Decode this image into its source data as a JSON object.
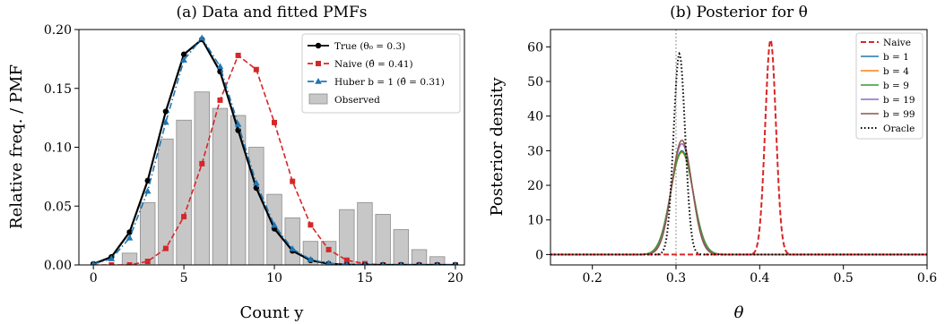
{
  "chart_data": [
    {
      "type": "bar",
      "title": "(a) Data and fitted PMFs",
      "xlabel": "Count y",
      "ylabel": "Relative freq. / PMF",
      "xlim": [
        -0.8,
        20.5
      ],
      "ylim": [
        0,
        0.2
      ],
      "xticks": [
        0,
        5,
        10,
        15,
        20
      ],
      "yticks": [
        0.0,
        0.05,
        0.1,
        0.15,
        0.2
      ],
      "xtick_labels": [
        "0",
        "5",
        "10",
        "15",
        "20"
      ],
      "ytick_labels": [
        "0.00",
        "0.05",
        "0.10",
        "0.15",
        "0.20"
      ],
      "legend_position": "top-right",
      "observed": {
        "name": "Observed",
        "color": "#c7c7c7",
        "edge_color": "#8c8c8c",
        "x": [
          0,
          1,
          2,
          3,
          4,
          5,
          6,
          7,
          8,
          9,
          10,
          11,
          12,
          13,
          14,
          15,
          16,
          17,
          18,
          19,
          20
        ],
        "values": [
          0.0,
          0.0,
          0.01,
          0.053,
          0.107,
          0.123,
          0.147,
          0.133,
          0.127,
          0.1,
          0.06,
          0.04,
          0.02,
          0.02,
          0.047,
          0.053,
          0.043,
          0.03,
          0.013,
          0.007,
          0.0
        ]
      },
      "series": [
        {
          "name": "True (θ₀ = 0.3)",
          "color": "#000000",
          "style": "solid",
          "marker": "circle",
          "x": [
            0,
            1,
            2,
            3,
            4,
            5,
            6,
            7,
            8,
            9,
            10,
            11,
            12,
            13,
            14,
            15,
            16,
            17,
            18,
            19,
            20
          ],
          "values": [
            0.0008,
            0.0068,
            0.0278,
            0.0716,
            0.1304,
            0.1789,
            0.1916,
            0.1643,
            0.1144,
            0.0654,
            0.0308,
            0.012,
            0.0039,
            0.001,
            0.0002,
            0.0,
            0.0,
            0.0,
            0.0,
            0.0,
            0.0
          ]
        },
        {
          "name": "Naive (θ̂ = 0.41)",
          "color": "#d62728",
          "style": "dashed",
          "marker": "square",
          "x": [
            0,
            1,
            2,
            3,
            4,
            5,
            6,
            7,
            8,
            9,
            10,
            11,
            12,
            13,
            14,
            15,
            16,
            17,
            18,
            19,
            20
          ],
          "values": [
            0.0,
            0.0,
            0.0,
            0.003,
            0.014,
            0.041,
            0.086,
            0.14,
            0.178,
            0.166,
            0.121,
            0.071,
            0.034,
            0.013,
            0.004,
            0.001,
            0.0,
            0.0,
            0.0,
            0.0,
            0.0
          ]
        },
        {
          "name": "Huber b = 1 (θ̂ = 0.31)",
          "color": "#1f77b4",
          "style": "dashdot",
          "marker": "triangle",
          "x": [
            0,
            1,
            2,
            3,
            4,
            5,
            6,
            7,
            8,
            9,
            10,
            11,
            12,
            13,
            14,
            15,
            16,
            17,
            18,
            19,
            20
          ],
          "values": [
            0.0006,
            0.0053,
            0.0229,
            0.0627,
            0.1212,
            0.1741,
            0.1928,
            0.1686,
            0.1194,
            0.0696,
            0.0337,
            0.0136,
            0.0046,
            0.0013,
            0.0003,
            0.0,
            0.0,
            0.0,
            0.0,
            0.0,
            0.0
          ]
        }
      ]
    },
    {
      "type": "line",
      "title": "(b) Posterior for θ",
      "xlabel": "θ",
      "ylabel": "Posterior density",
      "xlim": [
        0.15,
        0.6
      ],
      "ylim": [
        -3,
        65
      ],
      "xticks": [
        0.2,
        0.3,
        0.4,
        0.5,
        0.6
      ],
      "yticks": [
        0,
        10,
        20,
        30,
        40,
        50,
        60
      ],
      "xtick_labels": [
        "0.2",
        "0.3",
        "0.4",
        "0.5",
        "0.6"
      ],
      "ytick_labels": [
        "0",
        "10",
        "20",
        "30",
        "40",
        "50",
        "60"
      ],
      "legend_position": "top-right",
      "vertical_reference": {
        "x": 0.3,
        "color": "#8c8c8c",
        "style": "dotted"
      },
      "series": [
        {
          "name": "Naive",
          "color": "#d62728",
          "style": "dashed",
          "mean": 0.413,
          "sd": 0.0064,
          "peak": 62
        },
        {
          "name": "b = 1",
          "color": "#1f77b4",
          "style": "solid",
          "mean": 0.307,
          "sd": 0.0133,
          "peak": 30.0
        },
        {
          "name": "b = 4",
          "color": "#ff7f0e",
          "style": "solid",
          "mean": 0.307,
          "sd": 0.0135,
          "peak": 29.5
        },
        {
          "name": "b = 9",
          "color": "#2ca02c",
          "style": "solid",
          "mean": 0.307,
          "sd": 0.0134,
          "peak": 29.8
        },
        {
          "name": "b = 19",
          "color": "#9467bd",
          "style": "solid",
          "mean": 0.307,
          "sd": 0.0125,
          "peak": 32.0
        },
        {
          "name": "b = 99",
          "color": "#8c564b",
          "style": "solid",
          "mean": 0.307,
          "sd": 0.0121,
          "peak": 33.0
        },
        {
          "name": "Oracle",
          "color": "#000000",
          "style": "dotted",
          "mean": 0.304,
          "sd": 0.0069,
          "peak": 58
        }
      ]
    }
  ]
}
